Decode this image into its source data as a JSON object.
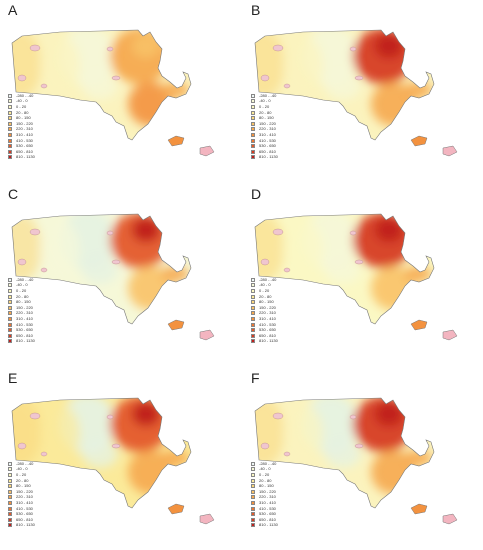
{
  "legend_bins": [
    {
      "label": "-280 - -40",
      "color": "#eef6f6"
    },
    {
      "label": "-40 - 0",
      "color": "#f6f8d8"
    },
    {
      "label": "0 - 20",
      "color": "#fbf8c4"
    },
    {
      "label": "20 - 80",
      "color": "#fbea9a"
    },
    {
      "label": "80 - 150",
      "color": "#fad77c"
    },
    {
      "label": "150 - 220",
      "color": "#f9c266"
    },
    {
      "label": "220 - 310",
      "color": "#f6a94f"
    },
    {
      "label": "310 - 410",
      "color": "#f3923f"
    },
    {
      "label": "410 - 530",
      "color": "#ed7733"
    },
    {
      "label": "530 - 650",
      "color": "#e45a2a"
    },
    {
      "label": "650 - 810",
      "color": "#d63c22"
    },
    {
      "label": "810 - 1130",
      "color": "#c0201d"
    }
  ],
  "panels": [
    {
      "letter": "A",
      "west": "#fbf3be",
      "center": "#f6f8d8",
      "northeast": "#f6a94f",
      "southeast": "#f3923f",
      "hotspot": "#f9c266"
    },
    {
      "letter": "B",
      "west": "#fbf3be",
      "center": "#f6f8d8",
      "northeast": "#d63c22",
      "southeast": "#f6a94f",
      "hotspot": "#c0201d"
    },
    {
      "letter": "C",
      "west": "#f6f8d8",
      "center": "#e6f2e2",
      "northeast": "#e45a2a",
      "southeast": "#f9c266",
      "hotspot": "#c0201d"
    },
    {
      "letter": "D",
      "west": "#fbf8c4",
      "center": "#f6f8d8",
      "northeast": "#d63c22",
      "southeast": "#f9c266",
      "hotspot": "#c0201d"
    },
    {
      "letter": "E",
      "west": "#fbea9a",
      "center": "#e6f2e2",
      "northeast": "#e45a2a",
      "southeast": "#f6a94f",
      "hotspot": "#c0201d"
    },
    {
      "letter": "F",
      "west": "#fbf3be",
      "center": "#e6f2e2",
      "northeast": "#d63c22",
      "southeast": "#f6a94f",
      "hotspot": "#c0201d"
    }
  ]
}
